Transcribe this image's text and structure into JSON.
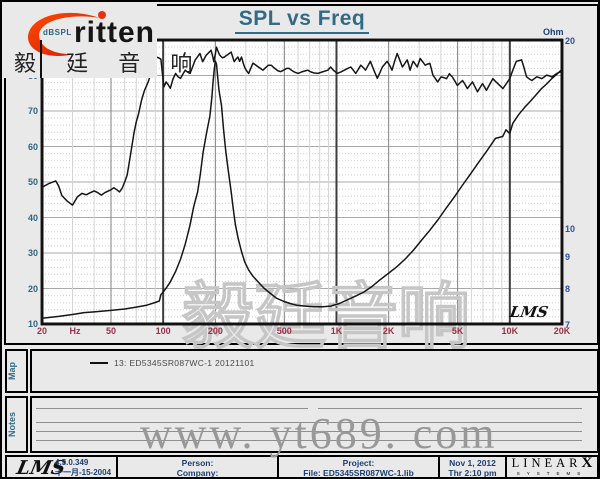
{
  "header": {
    "title": "SPL vs Freq",
    "brand_text": "ritten",
    "brand_cn": "毅 廷 音 响"
  },
  "plot": {
    "ylabel_left": "dBSPL",
    "ylabel_right": "Ohm",
    "watermark_cn": "毅廷音响",
    "lms_signature": "LMS"
  },
  "chart_data": {
    "type": "line",
    "title": "SPL vs Freq",
    "grid": true,
    "x_axis": {
      "scale": "log",
      "min": 20,
      "max": 20000,
      "ticks": [
        {
          "f": 20,
          "label": "20"
        },
        {
          "f": 31,
          "label": "Hz"
        },
        {
          "f": 50,
          "label": "50"
        },
        {
          "f": 100,
          "label": "100"
        },
        {
          "f": 200,
          "label": "200"
        },
        {
          "f": 500,
          "label": "500"
        },
        {
          "f": 1000,
          "label": "1K"
        },
        {
          "f": 2000,
          "label": "2K"
        },
        {
          "f": 5000,
          "label": "5K"
        },
        {
          "f": 10000,
          "label": "10K"
        },
        {
          "f": 20000,
          "label": "20K"
        }
      ]
    },
    "y_left": {
      "label": "dBSPL",
      "min": 10,
      "max": 90,
      "major_step": 10,
      "minor_step": 2,
      "tick_labels": [
        80,
        70,
        60,
        50,
        40,
        30,
        20,
        10
      ]
    },
    "y_right": {
      "label": "Ohm",
      "scale": "log",
      "min": 7,
      "max": 20,
      "tick_labels": [
        20,
        10,
        9,
        8,
        7
      ]
    },
    "series": [
      {
        "name": "SPL",
        "unit": "dBSPL",
        "axis": "left",
        "points": [
          [
            20,
            48.5
          ],
          [
            22,
            49.6
          ],
          [
            24,
            50.3
          ],
          [
            25,
            48.8
          ],
          [
            26,
            46.2
          ],
          [
            28,
            44.6
          ],
          [
            30,
            43.5
          ],
          [
            32,
            45.8
          ],
          [
            34,
            46.8
          ],
          [
            36,
            46.4
          ],
          [
            38,
            47.0
          ],
          [
            40,
            47.5
          ],
          [
            42,
            47.0
          ],
          [
            44,
            46.3
          ],
          [
            46,
            47.0
          ],
          [
            48,
            47.4
          ],
          [
            50,
            47.8
          ],
          [
            52,
            48.4
          ],
          [
            54,
            47.8
          ],
          [
            56,
            47.2
          ],
          [
            58,
            48.2
          ],
          [
            60,
            50.0
          ],
          [
            62,
            52.0
          ],
          [
            65,
            58.0
          ],
          [
            68,
            64.0
          ],
          [
            70,
            67.0
          ],
          [
            72,
            69.0
          ],
          [
            75,
            73.0
          ],
          [
            78,
            75.8
          ],
          [
            80,
            77.0
          ],
          [
            82,
            78.2
          ],
          [
            85,
            80.5
          ],
          [
            88,
            83.0
          ],
          [
            91,
            85.2
          ],
          [
            94,
            85.0
          ],
          [
            97,
            84.6
          ],
          [
            99,
            80.5
          ],
          [
            101,
            76.8
          ],
          [
            104,
            78.2
          ],
          [
            107,
            77.4
          ],
          [
            110,
            76.4
          ],
          [
            114,
            79.0
          ],
          [
            118,
            80.6
          ],
          [
            122,
            79.6
          ],
          [
            126,
            79.2
          ],
          [
            130,
            80.4
          ],
          [
            134,
            81.5
          ],
          [
            139,
            80.9
          ],
          [
            143,
            80.6
          ],
          [
            148,
            82.5
          ],
          [
            153,
            84.4
          ],
          [
            158,
            85.3
          ],
          [
            163,
            86.2
          ],
          [
            169,
            83.9
          ],
          [
            173,
            84.8
          ],
          [
            177,
            85.7
          ],
          [
            183,
            86.4
          ],
          [
            189,
            87.1
          ],
          [
            193,
            85.4
          ],
          [
            196,
            83.9
          ],
          [
            200,
            86.0
          ],
          [
            203,
            88.0
          ],
          [
            207,
            86.9
          ],
          [
            211,
            85.9
          ],
          [
            215,
            85.4
          ],
          [
            220,
            85.0
          ],
          [
            226,
            85.2
          ],
          [
            231,
            85.6
          ],
          [
            236,
            85.9
          ],
          [
            242,
            86.3
          ],
          [
            247,
            86.6
          ],
          [
            252,
            85.2
          ],
          [
            257,
            83.9
          ],
          [
            263,
            84.6
          ],
          [
            270,
            85.2
          ],
          [
            276,
            84.0
          ],
          [
            283,
            85.2
          ],
          [
            290,
            83.4
          ],
          [
            297,
            82.0
          ],
          [
            304,
            81.2
          ],
          [
            311,
            80.6
          ],
          [
            320,
            82.0
          ],
          [
            330,
            83.5
          ],
          [
            341,
            83.0
          ],
          [
            352,
            82.5
          ],
          [
            364,
            82.0
          ],
          [
            376,
            81.5
          ],
          [
            390,
            82.2
          ],
          [
            405,
            82.9
          ],
          [
            420,
            82.9
          ],
          [
            440,
            82.0
          ],
          [
            460,
            81.3
          ],
          [
            477,
            81.1
          ],
          [
            500,
            81.6
          ],
          [
            516,
            82.0
          ],
          [
            533,
            82.0
          ],
          [
            550,
            81.5
          ],
          [
            570,
            81.0
          ],
          [
            600,
            80.6
          ],
          [
            630,
            81.0
          ],
          [
            660,
            81.3
          ],
          [
            684,
            81.5
          ],
          [
            710,
            81.0
          ],
          [
            745,
            80.7
          ],
          [
            781,
            80.6
          ],
          [
            830,
            81.0
          ],
          [
            891,
            81.5
          ],
          [
            925,
            82.4
          ],
          [
            960,
            81.5
          ],
          [
            1010,
            80.6
          ],
          [
            1060,
            81.0
          ],
          [
            1110,
            81.5
          ],
          [
            1160,
            82.0
          ],
          [
            1210,
            82.4
          ],
          [
            1250,
            81.5
          ],
          [
            1290,
            80.6
          ],
          [
            1340,
            81.8
          ],
          [
            1380,
            82.9
          ],
          [
            1430,
            82.2
          ],
          [
            1470,
            81.5
          ],
          [
            1520,
            82.8
          ],
          [
            1570,
            84.0
          ],
          [
            1640,
            81.6
          ],
          [
            1720,
            79.2
          ],
          [
            1780,
            80.8
          ],
          [
            1840,
            82.4
          ],
          [
            1900,
            83.2
          ],
          [
            1960,
            84.0
          ],
          [
            2030,
            82.8
          ],
          [
            2090,
            81.5
          ],
          [
            2160,
            83.9
          ],
          [
            2240,
            86.2
          ],
          [
            2320,
            84.3
          ],
          [
            2400,
            82.4
          ],
          [
            2480,
            83.4
          ],
          [
            2560,
            84.4
          ],
          [
            2610,
            83.0
          ],
          [
            2660,
            81.5
          ],
          [
            2710,
            82.8
          ],
          [
            2770,
            84.0
          ],
          [
            2850,
            83.2
          ],
          [
            2920,
            82.4
          ],
          [
            2980,
            83.6
          ],
          [
            3040,
            84.8
          ],
          [
            3140,
            83.9
          ],
          [
            3250,
            82.9
          ],
          [
            3350,
            83.2
          ],
          [
            3460,
            83.4
          ],
          [
            3530,
            81.8
          ],
          [
            3600,
            80.1
          ],
          [
            3710,
            79.2
          ],
          [
            3830,
            78.2
          ],
          [
            3920,
            78.9
          ],
          [
            4010,
            79.6
          ],
          [
            4160,
            79.4
          ],
          [
            4310,
            79.1
          ],
          [
            4400,
            79.8
          ],
          [
            4480,
            80.5
          ],
          [
            4570,
            80.0
          ],
          [
            4660,
            79.6
          ],
          [
            4820,
            78.4
          ],
          [
            4980,
            77.2
          ],
          [
            5150,
            77.9
          ],
          [
            5330,
            78.6
          ],
          [
            5510,
            77.5
          ],
          [
            5690,
            76.3
          ],
          [
            5890,
            77.3
          ],
          [
            6090,
            78.2
          ],
          [
            6300,
            76.8
          ],
          [
            6510,
            75.4
          ],
          [
            6730,
            76.6
          ],
          [
            6960,
            77.7
          ],
          [
            7140,
            76.8
          ],
          [
            7330,
            75.8
          ],
          [
            7650,
            77.5
          ],
          [
            7980,
            79.1
          ],
          [
            8250,
            78.4
          ],
          [
            8530,
            77.7
          ],
          [
            8820,
            77.0
          ],
          [
            9120,
            76.3
          ],
          [
            9540,
            77.7
          ],
          [
            9980,
            79.1
          ],
          [
            10400,
            81.5
          ],
          [
            10900,
            84.0
          ],
          [
            11300,
            84.2
          ],
          [
            11700,
            84.4
          ],
          [
            12100,
            82.0
          ],
          [
            12500,
            79.6
          ],
          [
            12900,
            79.1
          ],
          [
            13400,
            78.6
          ],
          [
            13850,
            79.1
          ],
          [
            14300,
            79.6
          ],
          [
            14800,
            79.4
          ],
          [
            15300,
            79.1
          ],
          [
            15800,
            79.6
          ],
          [
            16300,
            80.1
          ],
          [
            16900,
            79.9
          ],
          [
            17500,
            79.6
          ],
          [
            18100,
            80.1
          ],
          [
            18700,
            80.6
          ],
          [
            19300,
            80.9
          ],
          [
            19900,
            81.2
          ]
        ]
      },
      {
        "name": "Impedance",
        "unit": "Ohm",
        "axis": "right",
        "points": [
          [
            20,
            7.15
          ],
          [
            25,
            7.2
          ],
          [
            30,
            7.25
          ],
          [
            35,
            7.3
          ],
          [
            40,
            7.32
          ],
          [
            50,
            7.36
          ],
          [
            60,
            7.4
          ],
          [
            70,
            7.45
          ],
          [
            80,
            7.5
          ],
          [
            90,
            7.58
          ],
          [
            95,
            7.62
          ],
          [
            97,
            7.8
          ],
          [
            100,
            7.88
          ],
          [
            105,
            8.02
          ],
          [
            110,
            8.18
          ],
          [
            118,
            8.5
          ],
          [
            126,
            8.9
          ],
          [
            134,
            9.4
          ],
          [
            143,
            10.1
          ],
          [
            150,
            10.8
          ],
          [
            158,
            11.4
          ],
          [
            164,
            12.2
          ],
          [
            170,
            13.2
          ],
          [
            178,
            14.2
          ],
          [
            186,
            15.1
          ],
          [
            191,
            16.2
          ],
          [
            194,
            17.1
          ],
          [
            197,
            17.9
          ],
          [
            200,
            18.5
          ],
          [
            203,
            18.3
          ],
          [
            206,
            17.5
          ],
          [
            210,
            16.6
          ],
          [
            217,
            15.7
          ],
          [
            223,
            14.4
          ],
          [
            230,
            13.2
          ],
          [
            238,
            12.3
          ],
          [
            247,
            11.4
          ],
          [
            254,
            10.7
          ],
          [
            261,
            10.1
          ],
          [
            271,
            9.6
          ],
          [
            283,
            9.15
          ],
          [
            296,
            8.8
          ],
          [
            311,
            8.55
          ],
          [
            330,
            8.35
          ],
          [
            350,
            8.2
          ],
          [
            380,
            8.0
          ],
          [
            413,
            7.85
          ],
          [
            450,
            7.7
          ],
          [
            490,
            7.62
          ],
          [
            540,
            7.55
          ],
          [
            592,
            7.5
          ],
          [
            660,
            7.48
          ],
          [
            740,
            7.46
          ],
          [
            830,
            7.46
          ],
          [
            925,
            7.48
          ],
          [
            1040,
            7.55
          ],
          [
            1150,
            7.65
          ],
          [
            1290,
            7.76
          ],
          [
            1440,
            7.88
          ],
          [
            1610,
            8.05
          ],
          [
            1790,
            8.25
          ],
          [
            2000,
            8.45
          ],
          [
            2230,
            8.65
          ],
          [
            2490,
            8.9
          ],
          [
            2780,
            9.2
          ],
          [
            3100,
            9.55
          ],
          [
            3460,
            9.9
          ],
          [
            3860,
            10.3
          ],
          [
            4300,
            10.75
          ],
          [
            4790,
            11.2
          ],
          [
            5340,
            11.7
          ],
          [
            5950,
            12.2
          ],
          [
            6640,
            12.75
          ],
          [
            7400,
            13.3
          ],
          [
            8260,
            13.9
          ],
          [
            9100,
            14.0
          ],
          [
            9500,
            14.35
          ],
          [
            9980,
            14.15
          ],
          [
            10400,
            14.7
          ],
          [
            11300,
            15.2
          ],
          [
            12200,
            15.6
          ],
          [
            13000,
            15.9
          ],
          [
            14100,
            16.3
          ],
          [
            15200,
            16.7
          ],
          [
            16300,
            17.0
          ],
          [
            17500,
            17.35
          ],
          [
            18800,
            17.65
          ],
          [
            20000,
            17.95
          ]
        ]
      }
    ]
  },
  "map": {
    "label": "Map",
    "legend": "13: ED5345SR087WC-1 20121101"
  },
  "notes": {
    "label": "Notes"
  },
  "watermark": {
    "url_text": "www. yt689. com"
  },
  "footer": {
    "lms_logo": "LMS",
    "version": "4.5.0.349",
    "version_date": "十一月-15-2004",
    "person_label": "Person:",
    "company_label": "Company:",
    "project_label": "Project:",
    "file_label": "File: ED5345SR087WC-1.lib",
    "date": "Nov 1, 2012",
    "time": "Thr 2:10 pm",
    "linearx_line1": "LINEAR",
    "linearx_x": "X",
    "linearx_line2": "SYSTEMS"
  },
  "colors": {
    "title": "#336a85",
    "x_ticks": "#993247",
    "y_ticks_left": "#2e6480",
    "y_ticks_right": "#2d4f9e",
    "footer_text": "#1c3e75",
    "brand_red": "#e6330f",
    "curve": "#161616",
    "background": "#e9e9e9"
  }
}
